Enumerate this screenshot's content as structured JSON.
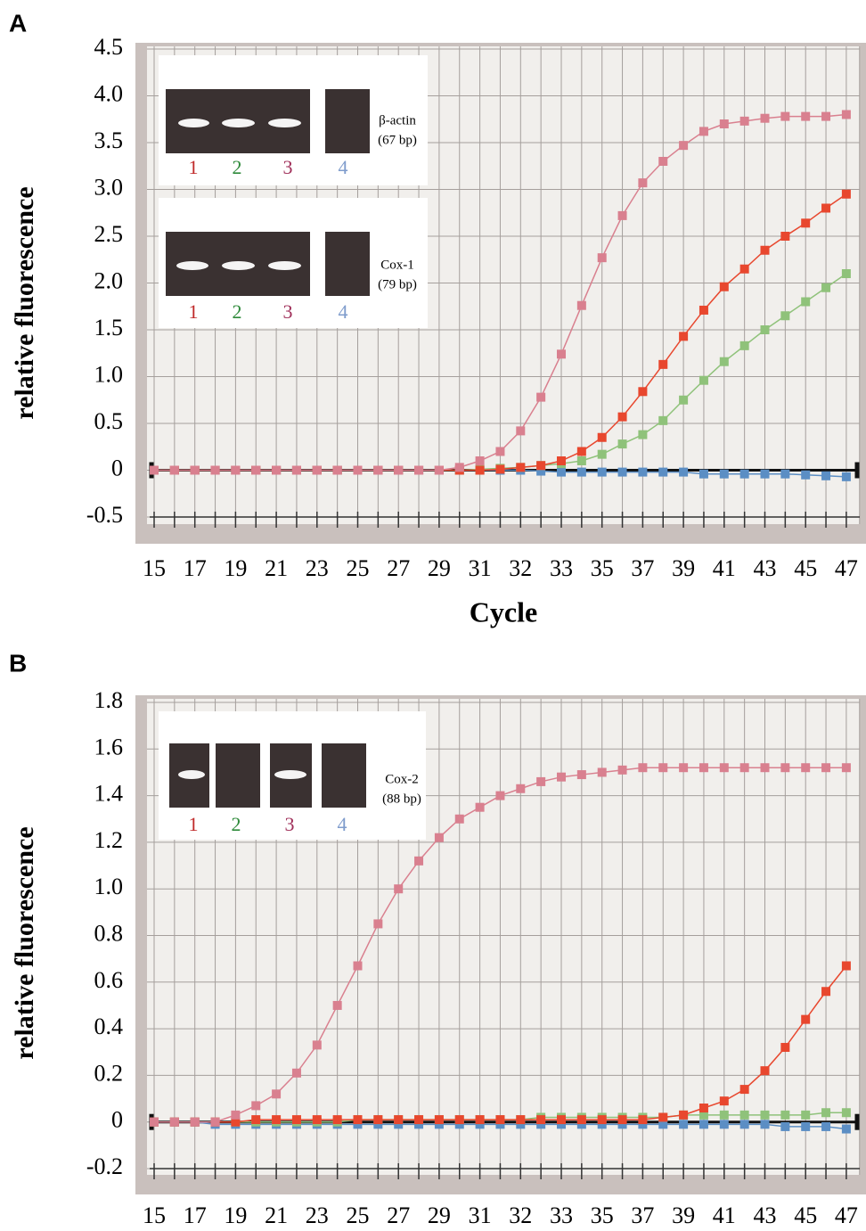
{
  "chart_data": [
    {
      "type": "line",
      "panel": "A",
      "ylabel": "relative fluorescence",
      "xlabel": "Cycle",
      "categories": [
        "15",
        null,
        "17",
        null,
        "19",
        null,
        "21",
        null,
        "23",
        null,
        "25",
        null,
        "27",
        null,
        "29",
        null,
        "31",
        null,
        "32",
        null,
        "33",
        null,
        "35",
        null,
        "37",
        null,
        "39",
        null,
        "41",
        null,
        "43",
        null,
        "45",
        null,
        "47"
      ],
      "ylim": [
        -0.5,
        4.5
      ],
      "yticks": [
        {
          "value": 4.5,
          "label": "4.5"
        },
        {
          "value": 4,
          "label": "4.0"
        },
        {
          "value": 3.5,
          "label": "3.5"
        },
        {
          "value": 3,
          "label": "3.0"
        },
        {
          "value": 2.5,
          "label": "2.5"
        },
        {
          "value": 2,
          "label": "2.0"
        },
        {
          "value": 1.5,
          "label": "1.5"
        },
        {
          "value": 1,
          "label": "1.0"
        },
        {
          "value": 0.5,
          "label": "0.5"
        },
        0,
        -0.5
      ],
      "grid": true,
      "series": [
        {
          "color": "#5b8ec4",
          "values": [
            0,
            0,
            0,
            0,
            0,
            0,
            0,
            0,
            0,
            0,
            0,
            0,
            0,
            0,
            0,
            0,
            0,
            0,
            0,
            -0.01,
            -0.02,
            -0.02,
            -0.02,
            -0.02,
            -0.02,
            -0.02,
            -0.02,
            -0.04,
            -0.04,
            -0.04,
            -0.04,
            -0.04,
            -0.05,
            -0.06,
            -0.07
          ]
        },
        {
          "color": "#8fc27a",
          "values": [
            0,
            0,
            0,
            0,
            0,
            0,
            0,
            0,
            0,
            0,
            0,
            0,
            0,
            0,
            0,
            0,
            0.01,
            0.02,
            0.03,
            0.05,
            0.07,
            0.1,
            0.17,
            0.28,
            0.38,
            0.53,
            0.75,
            0.96,
            1.16,
            1.33,
            1.5,
            1.65,
            1.8,
            1.95,
            2.1
          ]
        },
        {
          "color": "#e8472e",
          "values": [
            0,
            0,
            0,
            0,
            0,
            0,
            0,
            0,
            0,
            0,
            0,
            0,
            0,
            0,
            0,
            0,
            0,
            0.01,
            0.03,
            0.05,
            0.1,
            0.2,
            0.35,
            0.57,
            0.84,
            1.13,
            1.43,
            1.71,
            1.96,
            2.15,
            2.35,
            2.5,
            2.64,
            2.8,
            2.95
          ]
        },
        {
          "color": "#d9808f",
          "values": [
            0,
            0,
            0,
            0,
            0,
            0,
            0,
            0,
            0,
            0,
            0,
            0,
            0,
            0,
            0,
            0.03,
            0.1,
            0.2,
            0.42,
            0.78,
            1.24,
            1.76,
            2.27,
            2.72,
            3.07,
            3.3,
            3.47,
            3.62,
            3.7,
            3.73,
            3.76,
            3.78,
            3.78,
            3.78,
            3.8
          ]
        }
      ],
      "insets": [
        {
          "label": "β-actin",
          "sublabel": "(67 bp)",
          "lanes": [
            "1",
            "2",
            "3",
            "4"
          ]
        },
        {
          "label": "Cox-1",
          "sublabel": "(79 bp)",
          "lanes": [
            "1",
            "2",
            "3",
            "4"
          ]
        }
      ]
    },
    {
      "type": "line",
      "panel": "B",
      "ylabel": "relative fluorescence",
      "categories": [
        "15",
        null,
        "17",
        null,
        "19",
        null,
        "21",
        null,
        "23",
        null,
        "25",
        null,
        "27",
        null,
        "29",
        null,
        "31",
        null,
        "32",
        null,
        "33",
        null,
        "35",
        null,
        "37",
        null,
        "39",
        null,
        "41",
        null,
        "43",
        null,
        "45",
        null,
        "47"
      ],
      "ylim": [
        -0.2,
        1.8
      ],
      "yticks": [
        1.8,
        1.6,
        1.4,
        1.2,
        {
          "value": 1,
          "label": "1.0"
        },
        0.8,
        0.6,
        0.4,
        0.2,
        0,
        -0.2
      ],
      "grid": true,
      "series": [
        {
          "color": "#5b8ec4",
          "values": [
            0,
            0,
            0,
            -0.01,
            -0.01,
            -0.01,
            -0.01,
            -0.01,
            -0.01,
            -0.01,
            -0.01,
            -0.01,
            -0.01,
            -0.01,
            -0.01,
            -0.01,
            -0.01,
            -0.01,
            -0.01,
            -0.01,
            -0.01,
            -0.01,
            -0.01,
            -0.01,
            -0.01,
            -0.01,
            -0.01,
            -0.01,
            -0.01,
            -0.01,
            -0.01,
            -0.02,
            -0.02,
            -0.02,
            -0.03
          ]
        },
        {
          "color": "#8fc27a",
          "values": [
            0,
            0,
            0,
            0,
            0,
            0,
            0,
            0,
            0,
            0,
            0.01,
            0.01,
            0.01,
            0.01,
            0.01,
            0.01,
            0.01,
            0.01,
            0.01,
            0.02,
            0.02,
            0.02,
            0.02,
            0.02,
            0.02,
            0.02,
            0.03,
            0.03,
            0.03,
            0.03,
            0.03,
            0.03,
            0.03,
            0.04,
            0.04
          ]
        },
        {
          "color": "#e8472e",
          "values": [
            0,
            0,
            0,
            0,
            0,
            0.01,
            0.01,
            0.01,
            0.01,
            0.01,
            0.01,
            0.01,
            0.01,
            0.01,
            0.01,
            0.01,
            0.01,
            0.01,
            0.01,
            0.01,
            0.01,
            0.01,
            0.01,
            0.01,
            0.01,
            0.02,
            0.03,
            0.06,
            0.09,
            0.14,
            0.22,
            0.32,
            0.44,
            0.56,
            0.67
          ]
        },
        {
          "color": "#d9808f",
          "values": [
            0,
            0,
            0,
            0,
            0.03,
            0.07,
            0.12,
            0.21,
            0.33,
            0.5,
            0.67,
            0.85,
            1.0,
            1.12,
            1.22,
            1.3,
            1.35,
            1.4,
            1.43,
            1.46,
            1.48,
            1.49,
            1.5,
            1.51,
            1.52,
            1.52,
            1.52,
            1.52,
            1.52,
            1.52,
            1.52,
            1.52,
            1.52,
            1.52,
            1.52
          ]
        }
      ],
      "insets": [
        {
          "label": "Cox-2",
          "sublabel": "(88 bp)",
          "lanes": [
            "1",
            "2",
            "3",
            "4"
          ]
        }
      ]
    }
  ]
}
